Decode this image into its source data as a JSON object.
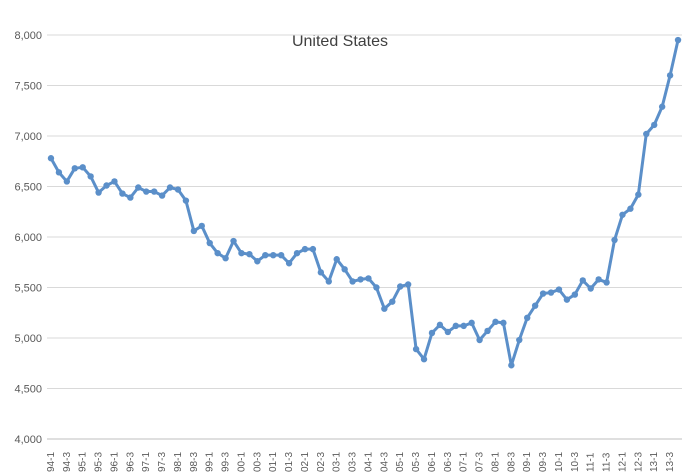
{
  "chart_data": {
    "type": "line",
    "title": "United States",
    "xlabel": "",
    "ylabel": "",
    "ylim": [
      4000,
      8000
    ],
    "yticks": [
      "4,000",
      "4,500",
      "5,000",
      "5,500",
      "6,000",
      "6,500",
      "7,000",
      "7,500",
      "8,000"
    ],
    "ytick_values": [
      4000,
      4500,
      5000,
      5500,
      6000,
      6500,
      7000,
      7500,
      8000
    ],
    "grid": true,
    "legend": "none",
    "series_color": "#5b8fc9",
    "grid_color": "#d9d9d9",
    "x": [
      "94-1",
      "94-2",
      "94-3",
      "94-4",
      "95-1",
      "95-2",
      "95-3",
      "95-4",
      "96-1",
      "96-2",
      "96-3",
      "96-4",
      "97-1",
      "97-2",
      "97-3",
      "97-4",
      "98-1",
      "98-2",
      "98-3",
      "98-4",
      "99-1",
      "99-2",
      "99-3",
      "99-4",
      "00-1",
      "00-2",
      "00-3",
      "00-4",
      "01-1",
      "01-2",
      "01-3",
      "01-4",
      "02-1",
      "02-2",
      "02-3",
      "02-4",
      "03-1",
      "03-2",
      "03-3",
      "03-4",
      "04-1",
      "04-2",
      "04-3",
      "04-4",
      "05-1",
      "05-2",
      "05-3",
      "05-4",
      "06-1",
      "06-2",
      "06-3",
      "06-4",
      "07-1",
      "07-2",
      "07-3",
      "07-4",
      "08-1",
      "08-2",
      "08-3",
      "08-4",
      "09-1",
      "09-2",
      "09-3",
      "09-4",
      "10-1",
      "10-2",
      "10-3",
      "10-4",
      "11-1",
      "11-2",
      "11-3",
      "11-4",
      "12-1",
      "12-2",
      "12-3",
      "12-4",
      "13-1",
      "13-2",
      "13-3",
      "13-4"
    ],
    "values": [
      6780,
      6640,
      6550,
      6680,
      6690,
      6600,
      6440,
      6510,
      6550,
      6430,
      6390,
      6490,
      6450,
      6450,
      6410,
      6490,
      6470,
      6360,
      6060,
      6110,
      5940,
      5840,
      5790,
      5960,
      5840,
      5830,
      5760,
      5820,
      5820,
      5820,
      5740,
      5840,
      5880,
      5880,
      5650,
      5560,
      5780,
      5680,
      5560,
      5580,
      5590,
      5500,
      5290,
      5360,
      5510,
      5530,
      4890,
      4790,
      5050,
      5130,
      5060,
      5120,
      5120,
      5150,
      4980,
      5070,
      5160,
      5150,
      4730,
      4980,
      5200,
      5320,
      5440,
      5450,
      5480,
      5380,
      5430,
      5570,
      5490,
      5580,
      5550,
      5970,
      6220,
      6280,
      6420,
      7020,
      7110,
      7290,
      7600,
      7950
    ]
  }
}
